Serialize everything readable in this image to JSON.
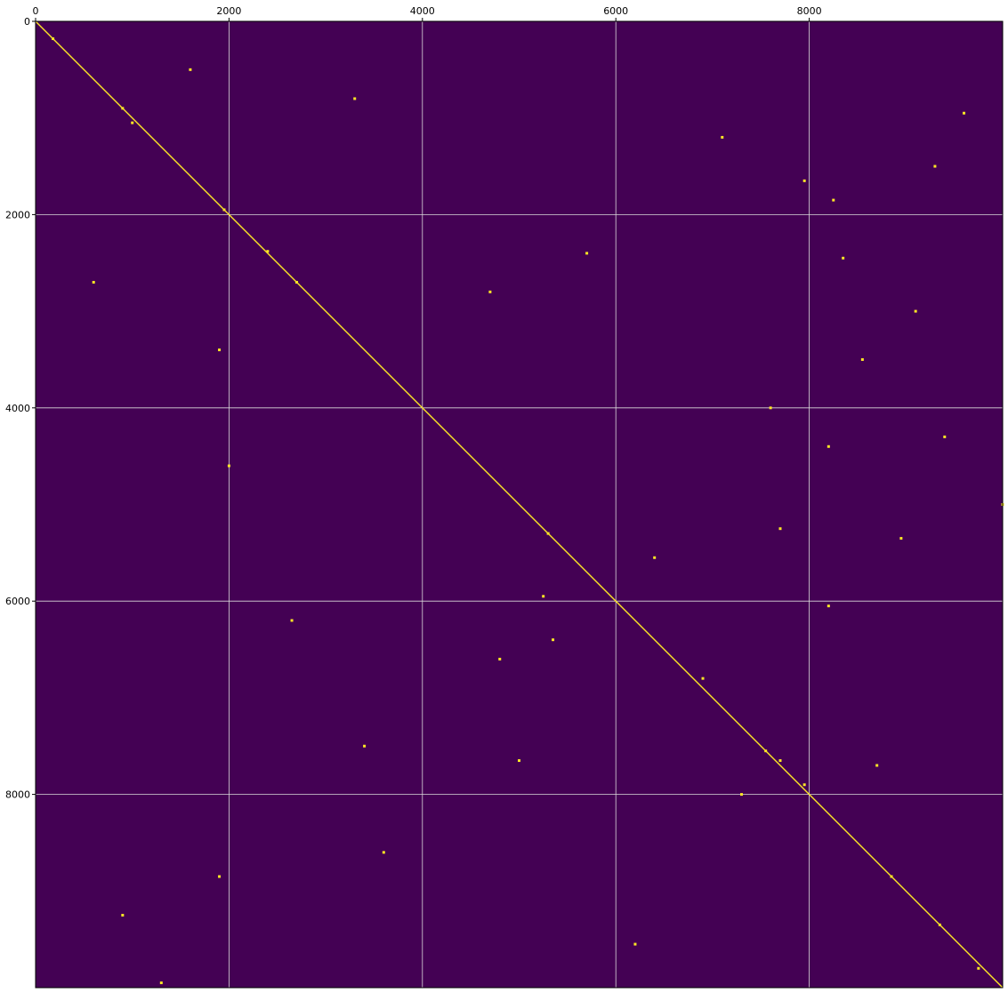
{
  "chart_data": {
    "type": "heatmap",
    "title": "",
    "xlabel": "",
    "ylabel": "",
    "xlim": [
      0,
      10000
    ],
    "ylim": [
      10000,
      0
    ],
    "x_axis_position": "top",
    "y_axis_inverted": true,
    "grid": true,
    "legend": "none",
    "x_ticks": [
      0,
      2000,
      4000,
      6000,
      8000
    ],
    "x_tick_labels": [
      "0",
      "2000",
      "4000",
      "6000",
      "8000"
    ],
    "y_ticks": [
      0,
      2000,
      4000,
      6000,
      8000
    ],
    "y_tick_labels": [
      "0",
      "2000",
      "4000",
      "6000",
      "8000"
    ],
    "colors": {
      "background": "#440154",
      "marker": "#fde725",
      "grid": "#d9d9d9"
    },
    "diagonal": {
      "from": [
        0,
        0
      ],
      "to": [
        10000,
        10000
      ]
    },
    "points": [
      [
        180,
        180
      ],
      [
        900,
        900
      ],
      [
        1000,
        1050
      ],
      [
        1950,
        1950
      ],
      [
        2400,
        2380
      ],
      [
        2700,
        2700
      ],
      [
        5300,
        5300
      ],
      [
        5250,
        5950
      ],
      [
        7550,
        7550
      ],
      [
        7700,
        7650
      ],
      [
        7950,
        7900
      ],
      [
        8850,
        8850
      ],
      [
        9350,
        9350
      ],
      [
        9750,
        9800
      ],
      [
        1600,
        500
      ],
      [
        3300,
        800
      ],
      [
        7100,
        1200
      ],
      [
        7950,
        1650
      ],
      [
        8250,
        1850
      ],
      [
        9300,
        1500
      ],
      [
        9600,
        950
      ],
      [
        5700,
        2400
      ],
      [
        4700,
        2800
      ],
      [
        1900,
        3400
      ],
      [
        8550,
        3500
      ],
      [
        7600,
        4000
      ],
      [
        8200,
        4400
      ],
      [
        10000,
        5000
      ],
      [
        8950,
        5350
      ],
      [
        5350,
        6400
      ],
      [
        4800,
        6600
      ],
      [
        3400,
        7500
      ],
      [
        8700,
        7700
      ],
      [
        7300,
        8000
      ],
      [
        1900,
        8850
      ],
      [
        6200,
        9550
      ],
      [
        900,
        9250
      ],
      [
        2650,
        6200
      ],
      [
        5000,
        7650
      ],
      [
        8200,
        6050
      ],
      [
        6900,
        6800
      ],
      [
        9400,
        4300
      ],
      [
        9100,
        3000
      ],
      [
        3600,
        8600
      ],
      [
        7700,
        5250
      ],
      [
        6400,
        5550
      ],
      [
        8350,
        2450
      ],
      [
        2000,
        4600
      ],
      [
        600,
        2700
      ],
      [
        1300,
        9950
      ]
    ]
  }
}
